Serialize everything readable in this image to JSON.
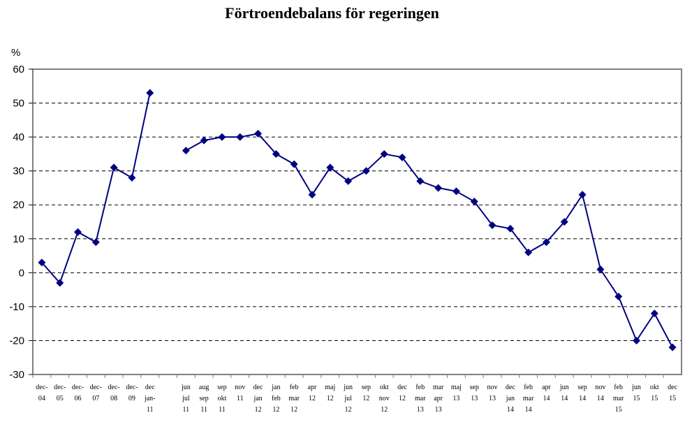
{
  "chart_data": {
    "type": "line",
    "title": "Förtroendebalans för regeringen",
    "y_unit": "%",
    "ylim": [
      -30,
      60
    ],
    "yticks": [
      60,
      50,
      40,
      30,
      20,
      10,
      0,
      -10,
      -20,
      -30
    ],
    "grid": "horizontal dashed",
    "legend": "none",
    "line_color": "#000080",
    "plot_border_color": "#808080",
    "categories": [
      "dec-\n04",
      "dec-\n05",
      "dec-\n06",
      "dec-\n07",
      "dec-\n08",
      "dec-\n09",
      "dec\njan-\n11",
      "",
      "jun\njul\n11",
      "aug\nsep\n11",
      "sep\nokt\n11",
      "nov\n11",
      "dec\njan\n12",
      "jan\nfeb\n12",
      "feb\nmar\n12",
      "apr\n12",
      "maj\n12",
      "jun\njul\n12",
      "sep\n12",
      "okt\nnov\n12",
      "dec\n12",
      "feb\nmar\n13",
      "mar\napr\n13",
      "maj\n13",
      "sep\n13",
      "nov\n13",
      "dec\njan\n14",
      "feb\nmar\n14",
      "apr\n14",
      "jun\n14",
      "sep\n14",
      "nov\n14",
      "feb\nmar\n15",
      "jun\n15",
      "okt\n15",
      "dec\n15"
    ],
    "series": [
      {
        "values": [
          3,
          -3,
          12,
          9,
          31,
          28,
          53,
          null,
          36,
          39,
          40,
          40,
          41,
          35,
          32,
          23,
          31,
          27,
          30,
          35,
          34,
          27,
          25,
          24,
          21,
          14,
          13,
          6,
          9,
          15,
          23,
          1,
          -7,
          -20,
          -12,
          -22
        ]
      }
    ]
  }
}
